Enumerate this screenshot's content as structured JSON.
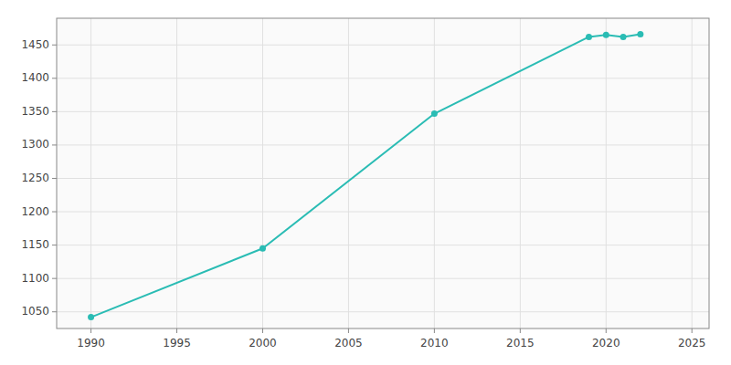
{
  "chart_data": {
    "type": "line",
    "x": [
      1990,
      2000,
      2010,
      2019,
      2020,
      2021,
      2022
    ],
    "values": [
      1042,
      1145,
      1347,
      1462,
      1465,
      1462,
      1466
    ],
    "color": "#2abcb4",
    "marker": "circle",
    "xlim": [
      1988,
      2026
    ],
    "ylim": [
      1025,
      1490
    ],
    "xticks": [
      1990,
      1995,
      2000,
      2005,
      2010,
      2015,
      2020,
      2025
    ],
    "yticks": [
      1050,
      1100,
      1150,
      1200,
      1250,
      1300,
      1350,
      1400,
      1450
    ],
    "grid": true
  }
}
